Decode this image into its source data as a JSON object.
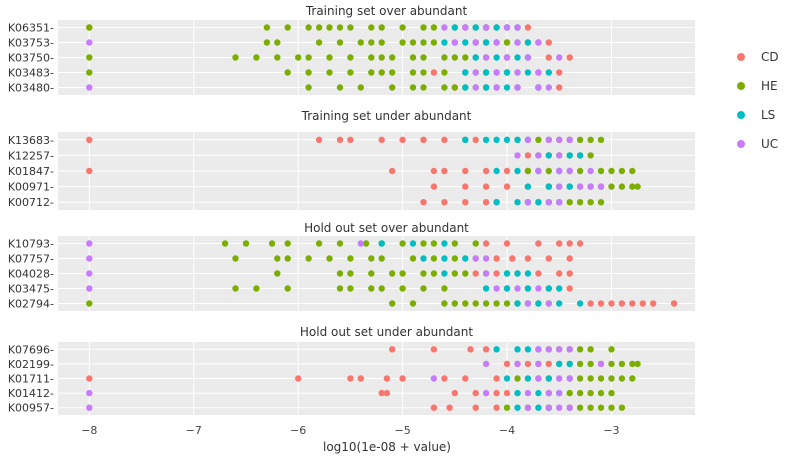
{
  "colors": {
    "CD": "#F8766D",
    "HE": "#7CAE00",
    "LS": "#00BFC4",
    "UC": "#C77CFF",
    "panel_bg": "#EBEBEB",
    "grid": "#FFFFFF"
  },
  "chart_data": {
    "type": "scatter",
    "xlabel": "log10(1e-08 + value)",
    "xlim": [
      -8.3,
      -2.2
    ],
    "xticks": [
      -8,
      -7,
      -6,
      -5,
      -4,
      -3
    ],
    "xtick_labels": [
      "−8",
      "−7",
      "−6",
      "−5",
      "−4",
      "−3"
    ],
    "legend": {
      "position": "right",
      "entries": [
        "CD",
        "HE",
        "LS",
        "UC"
      ]
    },
    "grid": true,
    "panels": [
      {
        "title": "Training set over abundant",
        "categories": [
          "K06351",
          "K03753",
          "K03750",
          "K03483",
          "K03480"
        ],
        "points": {
          "K06351": {
            "CD": [
              -3.8,
              -3.9,
              -4.0,
              -4.2,
              -4.4,
              -8
            ],
            "HE": [
              -6.3,
              -6.1,
              -5.9,
              -5.8,
              -5.7,
              -5.6,
              -5.5,
              -5.3,
              -5.2,
              -5.0,
              -4.8,
              -4.7,
              -4.5,
              -4.4,
              -4.3,
              -4.2,
              -4.1,
              -8
            ],
            "LS": [
              -4.5,
              -4.3,
              -4.2,
              -4.1,
              -4.0,
              -3.9
            ],
            "UC": [
              -4.6,
              -4.4,
              -4.2,
              -4.0,
              -3.9
            ]
          },
          "K03753": {
            "CD": [
              -3.6,
              -3.8,
              -4.0,
              -4.3,
              -4.5
            ],
            "HE": [
              -6.3,
              -6.2,
              -5.8,
              -5.6,
              -5.4,
              -5.3,
              -5.2,
              -5.0,
              -4.9,
              -4.8,
              -4.7,
              -4.3,
              -4.2,
              -4.0,
              -3.7
            ],
            "LS": [
              -4.6,
              -4.4,
              -4.2,
              -4.1,
              -3.9,
              -3.8
            ],
            "UC": [
              -4.5,
              -4.3,
              -4.1,
              -3.9,
              -3.7,
              -8
            ]
          },
          "K03750": {
            "CD": [
              -3.4,
              -3.6,
              -3.8,
              -4.0,
              -4.3
            ],
            "HE": [
              -6.6,
              -6.4,
              -6.2,
              -6.0,
              -5.9,
              -5.7,
              -5.5,
              -5.3,
              -5.2,
              -5.1,
              -4.9,
              -4.8,
              -4.6,
              -4.5,
              -4.4,
              -4.2,
              -4.0,
              -8
            ],
            "LS": [
              -4.3,
              -4.1,
              -3.9,
              -3.8
            ],
            "UC": [
              -4.2,
              -4.0,
              -3.8,
              -3.5
            ]
          },
          "K03483": {
            "CD": [
              -3.5,
              -3.7,
              -3.9,
              -4.1,
              -4.4,
              -4.7
            ],
            "HE": [
              -6.1,
              -5.9,
              -5.7,
              -5.5,
              -5.3,
              -5.2,
              -5.1,
              -4.9,
              -4.8,
              -4.6,
              -4.3,
              -4.2,
              -4.0,
              -8
            ],
            "LS": [
              -4.4,
              -4.2,
              -4.0,
              -3.8,
              -3.6
            ],
            "UC": [
              -4.3,
              -4.1,
              -3.9,
              -3.7
            ]
          },
          "K03480": {
            "CD": [
              -3.5,
              -3.7,
              -3.9,
              -4.2,
              -4.5
            ],
            "HE": [
              -5.9,
              -5.6,
              -5.4,
              -5.1,
              -4.9,
              -4.8,
              -4.6,
              -4.5,
              -4.4,
              -4.3,
              -4.2,
              -4.1
            ],
            "LS": [
              -4.4,
              -4.2,
              -4.0,
              -3.9,
              -3.7
            ],
            "UC": [
              -4.3,
              -4.1,
              -3.9,
              -3.7,
              -3.6,
              -8
            ]
          }
        }
      },
      {
        "title": "Training set under abundant",
        "categories": [
          "K13683",
          "K12257",
          "K01847",
          "K00971",
          "K00712"
        ],
        "points": {
          "K13683": {
            "CD": [
              -5.8,
              -5.6,
              -5.5,
              -5.2,
              -5.0,
              -4.8,
              -4.6,
              -4.4,
              -4.3,
              -8
            ],
            "HE": [
              -3.9,
              -3.7,
              -3.6,
              -3.5,
              -3.4,
              -3.3,
              -3.2,
              -3.1
            ],
            "LS": [
              -4.4,
              -4.2,
              -4.1,
              -4.0,
              -3.9,
              -3.8
            ],
            "UC": [
              -3.8,
              -3.6,
              -3.5,
              -3.4
            ]
          },
          "K12257": {
            "CD": [
              -3.6,
              -3.8
            ],
            "HE": [
              -3.7,
              -3.5,
              -3.4,
              -3.3,
              -3.2
            ],
            "LS": [
              -3.6,
              -3.4,
              -3.3
            ],
            "UC": [
              -3.9,
              -3.7,
              -3.5
            ]
          },
          "K01847": {
            "CD": [
              -5.1,
              -4.7,
              -4.6,
              -4.4,
              -4.2,
              -4.0,
              -3.8,
              -8
            ],
            "HE": [
              -3.8,
              -3.6,
              -3.4,
              -3.3,
              -3.1,
              -3.0,
              -2.9,
              -2.8
            ],
            "LS": [
              -4.1,
              -3.9,
              -3.7,
              -3.5
            ],
            "UC": [
              -3.7,
              -3.5,
              -3.4,
              -3.2
            ]
          },
          "K00971": {
            "CD": [
              -4.7,
              -4.4,
              -4.2,
              -4.0,
              -3.8,
              -3.6
            ],
            "HE": [
              -3.6,
              -3.4,
              -3.3,
              -3.2,
              -3.1,
              -3.0,
              -2.9,
              -2.8,
              -2.75
            ],
            "LS": [
              -3.8,
              -3.6,
              -3.5,
              -3.4
            ],
            "UC": [
              -3.5,
              -3.3,
              -3.2,
              -3.1
            ]
          },
          "K00712": {
            "CD": [
              -4.8,
              -4.6,
              -4.4,
              -4.2,
              -4.1
            ],
            "HE": [
              -3.8,
              -3.7,
              -3.6,
              -3.5,
              -3.4,
              -3.3,
              -3.2,
              -3.1
            ],
            "LS": [
              -4.1,
              -3.9,
              -3.8,
              -3.7
            ],
            "UC": [
              -3.8,
              -3.6,
              -3.5
            ]
          }
        }
      },
      {
        "title": "Hold out set over abundant",
        "categories": [
          "K10793",
          "K07757",
          "K04028",
          "K03475",
          "K02794"
        ],
        "points": {
          "K10793": {
            "CD": [
              -4.2,
              -4.0,
              -3.7,
              -3.5,
              -3.4,
              -3.3
            ],
            "HE": [
              -6.7,
              -6.5,
              -6.25,
              -6.1,
              -5.8,
              -5.6,
              -5.35,
              -5.2,
              -5.0,
              -4.8,
              -4.7,
              -4.5,
              -4.3
            ],
            "LS": [
              -5.2,
              -4.9,
              -4.6
            ],
            "UC": [
              -5.4,
              -8
            ]
          },
          "K07757": {
            "CD": [
              -4.3,
              -4.1,
              -3.95,
              -3.8,
              -3.6,
              -3.4
            ],
            "HE": [
              -6.6,
              -6.2,
              -6.1,
              -5.9,
              -5.7,
              -5.5,
              -5.3,
              -5.2,
              -4.9,
              -4.7,
              -4.5
            ],
            "LS": [
              -4.8,
              -4.6,
              -4.4
            ],
            "UC": [
              -4.3,
              -4.2,
              -8
            ]
          },
          "K04028": {
            "CD": [
              -4.3,
              -4.1,
              -3.9,
              -3.7,
              -3.5,
              -3.4
            ],
            "HE": [
              -6.2,
              -5.6,
              -5.5,
              -5.3,
              -5.1,
              -5.0,
              -4.8,
              -4.7,
              -4.5,
              -4.4,
              -4.2,
              -4.0
            ],
            "LS": [
              -4.6,
              -4.0,
              -3.9,
              -3.8
            ],
            "UC": [
              -4.2,
              -8
            ]
          },
          "K03475": {
            "CD": [
              -4.0,
              -3.8,
              -3.6,
              -3.4
            ],
            "HE": [
              -6.6,
              -6.4,
              -6.1,
              -5.6,
              -5.5,
              -5.3,
              -5.2,
              -5.0,
              -4.8,
              -4.6
            ],
            "LS": [
              -4.2,
              -4.0,
              -3.8,
              -3.6,
              -3.5
            ],
            "UC": [
              -4.1,
              -3.9,
              -3.7,
              -8
            ]
          },
          "K02794": {
            "CD": [
              -3.2,
              -3.1,
              -3.0,
              -2.9,
              -2.8,
              -2.7,
              -2.6,
              -2.4
            ],
            "HE": [
              -5.1,
              -4.9,
              -4.6,
              -4.5,
              -4.4,
              -4.3,
              -4.2,
              -4.1,
              -4.0,
              -3.9,
              -3.8,
              -3.7,
              -3.6,
              -8
            ],
            "LS": [
              -3.9,
              -3.7,
              -3.5,
              -3.3
            ],
            "UC": [
              -3.8,
              -3.6
            ]
          }
        }
      },
      {
        "title": "Hold out set under abundant",
        "categories": [
          "K07696",
          "K02199",
          "K01711",
          "K01412",
          "K00957"
        ],
        "points": {
          "K07696": {
            "CD": [
              -5.1,
              -4.7,
              -4.35,
              -4.2
            ],
            "HE": [
              -3.6,
              -3.5,
              -3.4,
              -3.3,
              -3.2,
              -3.0
            ],
            "LS": [
              -4.1,
              -3.9,
              -3.8,
              -3.7
            ],
            "UC": [
              -3.7,
              -3.6,
              -3.5,
              -3.4
            ]
          },
          "K02199": {
            "CD": [
              -4.0,
              -3.9,
              -3.8,
              -3.6,
              -3.5
            ],
            "HE": [
              -3.4,
              -3.3,
              -3.2,
              -3.1,
              -3.0,
              -2.9,
              -2.8,
              -2.75
            ],
            "LS": [
              -3.7,
              -3.5,
              -3.4
            ],
            "UC": [
              -4.2,
              -3.9,
              -3.7,
              -3.1
            ]
          },
          "K01711": {
            "CD": [
              -6.0,
              -5.5,
              -5.4,
              -5.15,
              -5.0,
              -4.6,
              -4.4,
              -4.1,
              -8
            ],
            "HE": [
              -3.9,
              -3.7,
              -3.6,
              -3.4,
              -3.3,
              -3.2,
              -3.1,
              -3.0,
              -2.9,
              -2.8
            ],
            "LS": [
              -4.0,
              -3.8,
              -3.6
            ],
            "UC": [
              -4.7,
              -3.7,
              -3.5,
              -3.4
            ]
          },
          "K01412": {
            "CD": [
              -5.2,
              -5.15,
              -4.5,
              -4.3,
              -4.1,
              -4.0
            ],
            "HE": [
              -3.6,
              -3.4,
              -3.3,
              -3.2,
              -3.1,
              -3.0
            ],
            "LS": [
              -3.9,
              -3.7,
              -3.5
            ],
            "UC": [
              -4.2,
              -3.8,
              -3.6,
              -3.5,
              -8
            ]
          },
          "K00957": {
            "CD": [
              -4.7,
              -4.55,
              -4.3,
              -4.1
            ],
            "HE": [
              -4.0,
              -3.8,
              -3.6,
              -3.4,
              -3.3,
              -3.2,
              -3.1,
              -3.0,
              -2.9
            ],
            "LS": [
              -3.9,
              -3.7,
              -3.6
            ],
            "UC": [
              -3.8,
              -3.6,
              -3.5,
              -3.4,
              -8
            ]
          }
        }
      }
    ]
  }
}
